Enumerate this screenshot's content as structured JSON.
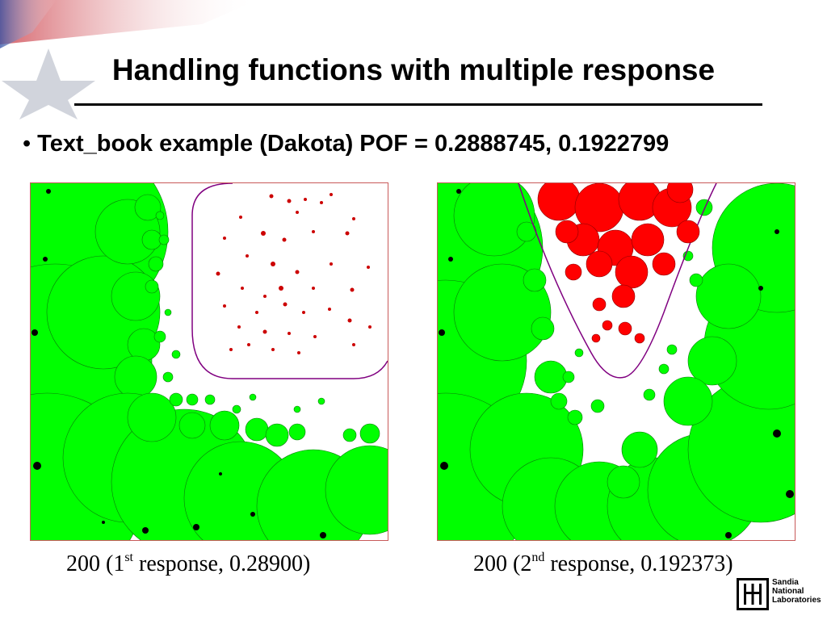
{
  "slide": {
    "title": "Handling functions with multiple response",
    "bullet": "Text_book example (Dakota) POF = 0.2888745, 0.1922799"
  },
  "panels": [
    {
      "caption_prefix": "200 (1",
      "caption_sup": "st",
      "caption_suffix": " response, 0.28900)"
    },
    {
      "caption_prefix": "200 (2",
      "caption_sup": "nd",
      "caption_suffix": " response, 0.192373)"
    }
  ],
  "logo": {
    "lines": [
      "Sandia",
      "National",
      "Laboratories"
    ]
  },
  "colors": {
    "safe_fill": "#00ff00",
    "fail_fill": "#ff0000",
    "boundary": "#800080",
    "black_points": "#000000",
    "star_red": "#c0303a",
    "star_blue": "#2a4b9a"
  }
}
